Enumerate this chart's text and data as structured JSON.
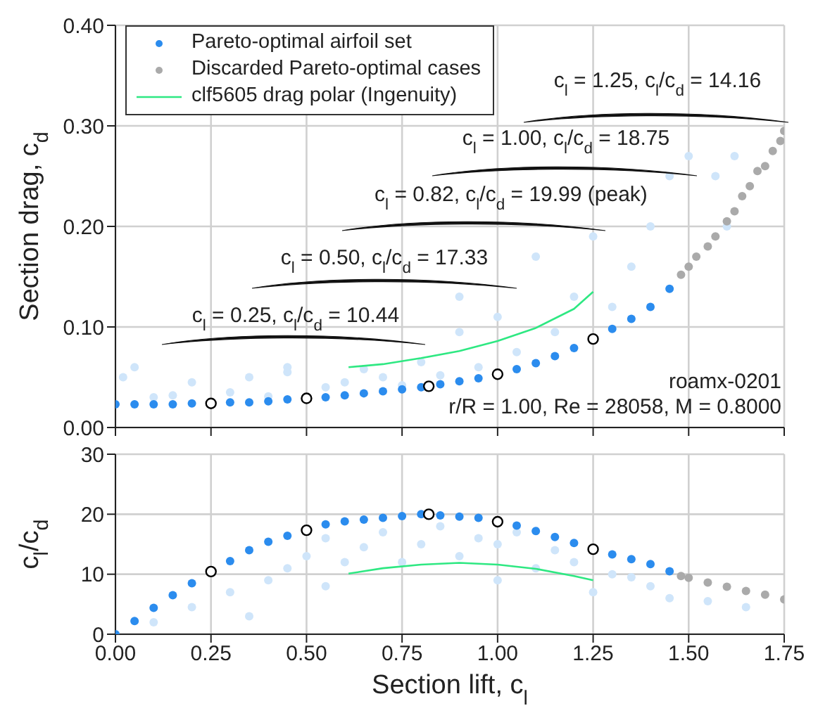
{
  "chart_data": [
    {
      "type": "scatter",
      "ylabel": "Section drag, c$_{d}$",
      "xlim": [
        0,
        1.75
      ],
      "ylim": [
        0,
        0.4
      ],
      "xticks": [
        0,
        0.25,
        0.5,
        0.75,
        1,
        1.25,
        1.5,
        1.75
      ],
      "yticks": [
        {
          "value": 0,
          "label": "0.00"
        },
        {
          "value": 0.1,
          "label": "0.10"
        },
        {
          "value": 0.2,
          "label": "0.20"
        },
        {
          "value": 0.3,
          "label": "0.30"
        },
        {
          "value": 0.4,
          "label": "0.40"
        }
      ],
      "tick_labels": "y",
      "grid": true,
      "legend": "top left",
      "annotations": [
        "c$_{l}$ = 1.25, c$_{l}$/c$_{d}$ = 14.16",
        "c$_{l}$ = 1.00, c$_{l}$/c$_{d}$ = 18.75",
        "c$_{l}$ = 0.82, c$_{l}$/c$_{d}$ = 19.99 (peak)",
        "c$_{l}$ = 0.50, c$_{l}$/c$_{d}$ = 17.33",
        "c$_{l}$ = 0.25, c$_{l}$/c$_{d}$ = 10.44",
        "roamx-0201",
        "r/R = 1.00, Re = 28058, M = 0.8000"
      ],
      "series": [
        {
          "type": "scatter",
          "color": "#cfe5fa",
          "x": [
            0.02,
            0.05,
            0.1,
            0.15,
            0.2,
            0.3,
            0.35,
            0.4,
            0.45,
            0.45,
            0.55,
            0.6,
            0.65,
            0.7,
            0.75,
            0.8,
            0.85,
            0.9,
            0.9,
            0.95,
            1.0,
            1.05,
            1.1,
            1.15,
            1.2,
            1.25,
            1.3,
            1.35,
            1.4,
            1.45,
            1.5,
            1.57,
            1.6,
            1.62
          ],
          "values": [
            0.05,
            0.06,
            0.03,
            0.032,
            0.045,
            0.035,
            0.05,
            0.031,
            0.055,
            0.06,
            0.04,
            0.045,
            0.058,
            0.05,
            0.042,
            0.065,
            0.052,
            0.095,
            0.13,
            0.06,
            0.11,
            0.075,
            0.17,
            0.095,
            0.13,
            0.19,
            0.12,
            0.16,
            0.2,
            0.25,
            0.27,
            0.25,
            0.2,
            0.27
          ]
        },
        {
          "type": "scatter",
          "name": "Pareto-optimal airfoil set",
          "color": "#2b8cee",
          "x": [
            0,
            0.05,
            0.1,
            0.15,
            0.2,
            0.3,
            0.35,
            0.4,
            0.45,
            0.55,
            0.6,
            0.65,
            0.7,
            0.75,
            0.8,
            0.85,
            0.9,
            0.95,
            1.05,
            1.1,
            1.15,
            1.2,
            1.3,
            1.35,
            1.4,
            1.45
          ],
          "values": [
            0.023,
            0.023,
            0.023,
            0.023,
            0.024,
            0.025,
            0.025,
            0.026,
            0.028,
            0.03,
            0.032,
            0.034,
            0.036,
            0.038,
            0.04,
            0.043,
            0.046,
            0.049,
            0.058,
            0.064,
            0.071,
            0.079,
            0.098,
            0.108,
            0.12,
            0.138
          ]
        },
        {
          "type": "scatter",
          "name": "Discarded Pareto-optimal cases",
          "color": "#aaaaaa",
          "x": [
            1.48,
            1.5,
            1.52,
            1.55,
            1.57,
            1.6,
            1.62,
            1.64,
            1.66,
            1.68,
            1.7,
            1.72,
            1.74,
            1.75
          ],
          "values": [
            0.152,
            0.16,
            0.17,
            0.18,
            0.19,
            0.205,
            0.215,
            0.23,
            0.24,
            0.255,
            0.26,
            0.275,
            0.285,
            0.295
          ]
        },
        {
          "type": "line",
          "name": "clf5605 drag polar (Ingenuity)",
          "color": "#2ee882",
          "x": [
            0.61,
            0.7,
            0.8,
            0.9,
            1.0,
            1.1,
            1.2,
            1.25
          ],
          "values": [
            0.06,
            0.063,
            0.069,
            0.076,
            0.086,
            0.099,
            0.118,
            0.135
          ]
        },
        {
          "type": "scatter",
          "color": "#ffffff",
          "x": [
            0.25,
            0.5,
            0.82,
            1.0,
            1.25
          ],
          "values": [
            0.024,
            0.029,
            0.041,
            0.053,
            0.088
          ]
        }
      ]
    },
    {
      "type": "scatter",
      "xlabel": "Section lift, c$_{l}$",
      "ylabel": "c$_{l}$/c$_{d}$",
      "xlim": [
        0,
        1.75
      ],
      "ylim": [
        0,
        30
      ],
      "xticks": [
        {
          "value": 0,
          "label": "0.00"
        },
        {
          "value": 0.25,
          "label": "0.25"
        },
        {
          "value": 0.5,
          "label": "0.50"
        },
        {
          "value": 0.75,
          "label": "0.75"
        },
        {
          "value": 1,
          "label": "1.00"
        },
        {
          "value": 1.25,
          "label": "1.25"
        },
        {
          "value": 1.5,
          "label": "1.50"
        },
        {
          "value": 1.75,
          "label": "1.75"
        }
      ],
      "yticks": [
        0,
        10,
        20,
        30
      ],
      "grid": true,
      "series": [
        {
          "type": "scatter",
          "color": "#cfe5fa",
          "x": [
            0.1,
            0.2,
            0.3,
            0.35,
            0.4,
            0.45,
            0.5,
            0.55,
            0.55,
            0.6,
            0.65,
            0.7,
            0.75,
            0.8,
            0.85,
            0.9,
            0.95,
            1.0,
            1.0,
            1.05,
            1.1,
            1.15,
            1.2,
            1.25,
            1.3,
            1.35,
            1.4,
            1.45,
            1.55,
            1.65
          ],
          "values": [
            2,
            4.5,
            7,
            3,
            9,
            11,
            13,
            8,
            16,
            12,
            14.5,
            17,
            12,
            15,
            18,
            13,
            16,
            9,
            15,
            17,
            11,
            14,
            12,
            7,
            10,
            9.5,
            8,
            6,
            5.5,
            4.5
          ]
        },
        {
          "type": "scatter",
          "color": "#2b8cee",
          "x": [
            0,
            0.05,
            0.1,
            0.15,
            0.2,
            0.3,
            0.35,
            0.4,
            0.45,
            0.55,
            0.6,
            0.65,
            0.7,
            0.75,
            0.8,
            0.85,
            0.9,
            0.95,
            1.05,
            1.1,
            1.15,
            1.2,
            1.3,
            1.35,
            1.4,
            1.45
          ],
          "values": [
            0,
            2.2,
            4.4,
            6.5,
            8.5,
            12.2,
            14.0,
            15.4,
            16.4,
            18.3,
            18.8,
            19.1,
            19.4,
            19.7,
            20.0,
            19.8,
            19.6,
            19.4,
            18.1,
            17.2,
            16.2,
            15.2,
            13.3,
            12.5,
            11.7,
            10.5
          ]
        },
        {
          "type": "scatter",
          "color": "#aaaaaa",
          "x": [
            1.48,
            1.5,
            1.55,
            1.6,
            1.65,
            1.7,
            1.75
          ],
          "values": [
            9.7,
            9.4,
            8.6,
            7.9,
            7.2,
            6.6,
            5.8
          ]
        },
        {
          "type": "line",
          "color": "#2ee882",
          "x": [
            0.61,
            0.7,
            0.8,
            0.9,
            1.0,
            1.1,
            1.2,
            1.25
          ],
          "values": [
            10.1,
            11.0,
            11.6,
            11.9,
            11.6,
            10.9,
            9.7,
            9.0
          ]
        },
        {
          "type": "scatter",
          "color": "#ffffff",
          "x": [
            0.25,
            0.5,
            0.82,
            1.0,
            1.25
          ],
          "values": [
            10.44,
            17.33,
            19.99,
            18.75,
            14.16
          ]
        }
      ]
    }
  ]
}
